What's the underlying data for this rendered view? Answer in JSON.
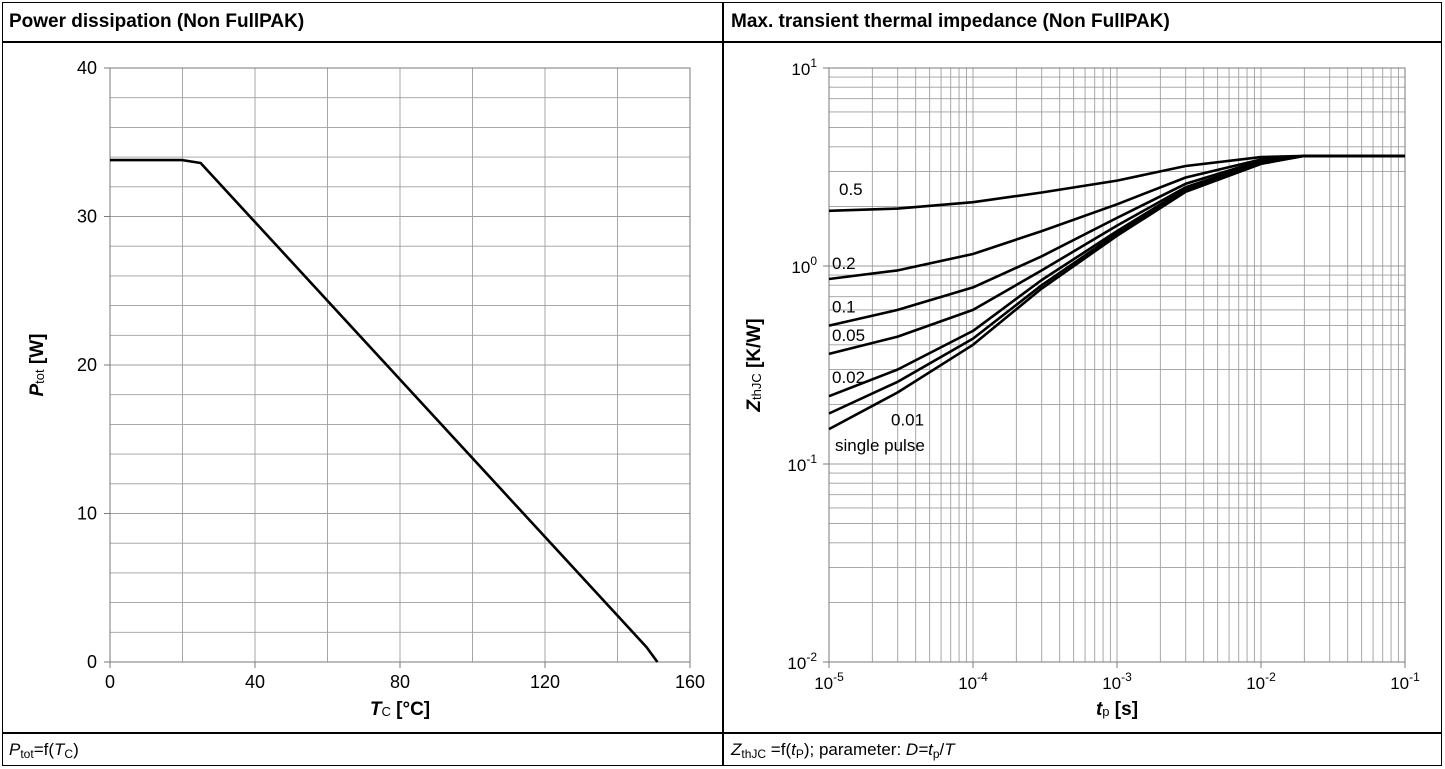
{
  "left_panel": {
    "title": "Power dissipation (Non FullPAK)",
    "caption": {
      "p1": "P",
      "p2": "tot",
      "p3": "=f(",
      "p4": "T",
      "p5": "C",
      "p6": ")"
    }
  },
  "right_panel": {
    "title": "Max. transient thermal impedance (Non FullPAK)",
    "caption": {
      "z1": "Z",
      "z2": "thJC",
      "z3": " =f(",
      "z4": "t",
      "z5": "P",
      "z6": "); parameter: ",
      "z7": "D=t",
      "z8": "p",
      "z9": "/",
      "z10": "T"
    }
  },
  "chart_data": [
    {
      "type": "line",
      "title": "Power dissipation (Non FullPAK)",
      "xlabel": "T_C [°C]",
      "ylabel": "P_tot [W]",
      "xlim": [
        0,
        160
      ],
      "ylim": [
        0,
        40
      ],
      "x_ticks": [
        0,
        40,
        80,
        120,
        160
      ],
      "y_ticks": [
        0,
        10,
        20,
        30,
        40
      ],
      "grid": true,
      "x_minor_step": 20,
      "y_minor_step": 2,
      "series": [
        {
          "x": [
            0,
            20,
            25,
            148,
            151
          ],
          "y": [
            33.8,
            33.8,
            33.6,
            1,
            0
          ]
        }
      ]
    },
    {
      "type": "line",
      "title": "Max. transient thermal impedance (Non FullPAK)",
      "xlabel": "t_p [s]",
      "ylabel": "Z_thJC [K/W]",
      "xscale": "log",
      "yscale": "log",
      "xlim": [
        1e-05,
        0.1
      ],
      "ylim": [
        0.01,
        10
      ],
      "x_tick_exponents": [
        -5,
        -4,
        -3,
        -2,
        -1
      ],
      "y_tick_exponents": [
        -2,
        -1,
        0,
        1
      ],
      "grid": true,
      "series": [
        {
          "name": "0.5",
          "x": [
            1e-05,
            3e-05,
            0.0001,
            0.0003,
            0.001,
            0.003,
            0.01,
            0.02,
            0.1
          ],
          "y": [
            1.9,
            1.95,
            2.1,
            2.35,
            2.7,
            3.2,
            3.55,
            3.6,
            3.6
          ]
        },
        {
          "name": "0.2",
          "x": [
            1e-05,
            3e-05,
            0.0001,
            0.0003,
            0.001,
            0.003,
            0.01,
            0.02,
            0.1
          ],
          "y": [
            0.86,
            0.95,
            1.15,
            1.5,
            2.05,
            2.8,
            3.45,
            3.6,
            3.6
          ]
        },
        {
          "name": "0.1",
          "x": [
            1e-05,
            3e-05,
            0.0001,
            0.0003,
            0.001,
            0.003,
            0.01,
            0.02,
            0.1
          ],
          "y": [
            0.5,
            0.6,
            0.78,
            1.12,
            1.75,
            2.6,
            3.4,
            3.6,
            3.6
          ]
        },
        {
          "name": "0.05",
          "x": [
            1e-05,
            3e-05,
            0.0001,
            0.0003,
            0.001,
            0.003,
            0.01,
            0.02,
            0.1
          ],
          "y": [
            0.36,
            0.44,
            0.6,
            0.95,
            1.6,
            2.5,
            3.35,
            3.6,
            3.6
          ]
        },
        {
          "name": "0.02",
          "x": [
            1e-05,
            3e-05,
            0.0001,
            0.0003,
            0.001,
            0.003,
            0.01,
            0.02,
            0.1
          ],
          "y": [
            0.22,
            0.3,
            0.47,
            0.85,
            1.5,
            2.45,
            3.3,
            3.6,
            3.6
          ]
        },
        {
          "name": "0.01",
          "x": [
            1e-05,
            3e-05,
            0.0001,
            0.0003,
            0.001,
            0.003,
            0.01,
            0.02,
            0.1
          ],
          "y": [
            0.18,
            0.26,
            0.43,
            0.8,
            1.46,
            2.4,
            3.3,
            3.6,
            3.6
          ]
        },
        {
          "name": "single pulse",
          "x": [
            1e-05,
            3e-05,
            0.0001,
            0.0003,
            0.001,
            0.003,
            0.01,
            0.02,
            0.1
          ],
          "y": [
            0.15,
            0.23,
            0.4,
            0.77,
            1.42,
            2.37,
            3.28,
            3.6,
            3.6
          ]
        }
      ]
    }
  ]
}
